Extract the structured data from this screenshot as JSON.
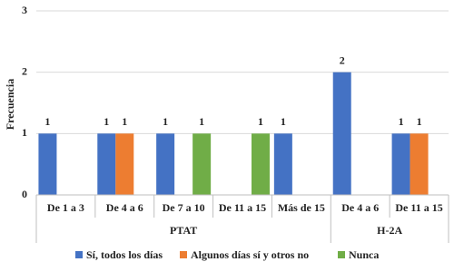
{
  "chart_data": {
    "type": "bar",
    "y_label": "Frecuencia",
    "groups": [
      {
        "name": "PTAT",
        "categories": [
          "De 1 a 3",
          "De 4 a 6",
          "De 7 a 10",
          "De 11 a 15",
          "Más de 15"
        ]
      },
      {
        "name": "H-2A",
        "categories": [
          "De 4 a 6",
          "De 11 a 15"
        ]
      }
    ],
    "series": [
      {
        "name": "Sí, todos los días",
        "color": "#4472c4",
        "values": [
          1,
          1,
          1,
          null,
          1,
          2,
          1
        ]
      },
      {
        "name": "Algunos días sí y otros no",
        "color": "#ed7d31",
        "values": [
          null,
          1,
          null,
          null,
          null,
          null,
          1
        ]
      },
      {
        "name": "Nunca",
        "color": "#70ad47",
        "values": [
          null,
          null,
          1,
          1,
          null,
          null,
          null
        ]
      }
    ],
    "ylim": [
      0,
      3
    ],
    "yticks": [
      0,
      1,
      2,
      3
    ],
    "grid": true,
    "legend": "bottom"
  }
}
